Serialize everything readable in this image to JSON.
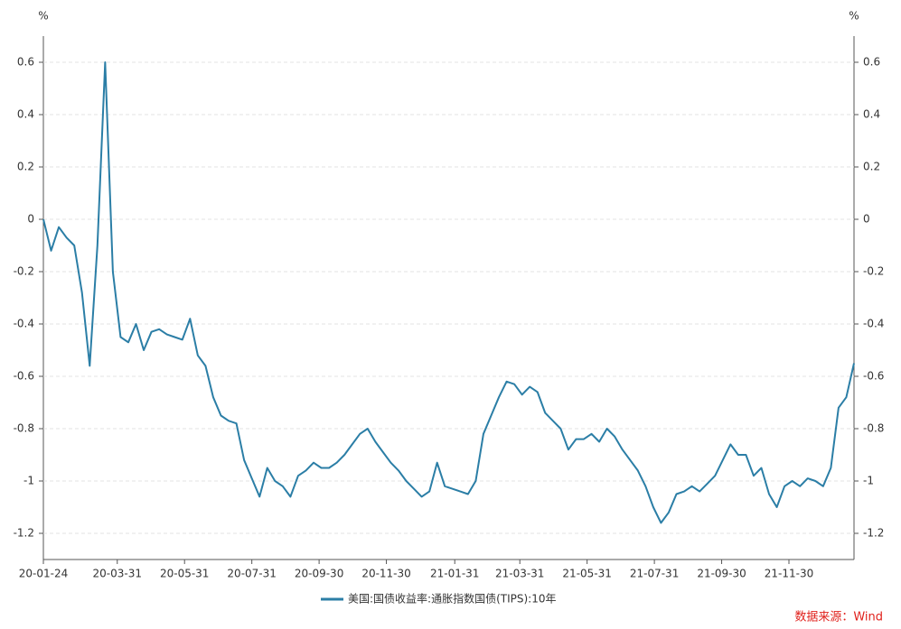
{
  "chart_data": {
    "type": "line",
    "y_label": "%",
    "y2_label": "%",
    "x": [
      "2020-01-24",
      "2020-01-31",
      "2020-02-07",
      "2020-02-14",
      "2020-02-21",
      "2020-02-28",
      "2020-03-06",
      "2020-03-13",
      "2020-03-20",
      "2020-03-27",
      "2020-04-03",
      "2020-04-10",
      "2020-04-17",
      "2020-04-24",
      "2020-05-01",
      "2020-05-08",
      "2020-05-15",
      "2020-05-22",
      "2020-05-29",
      "2020-06-05",
      "2020-06-12",
      "2020-06-19",
      "2020-06-26",
      "2020-07-03",
      "2020-07-10",
      "2020-07-17",
      "2020-07-24",
      "2020-07-31",
      "2020-08-07",
      "2020-08-14",
      "2020-08-21",
      "2020-08-28",
      "2020-09-04",
      "2020-09-11",
      "2020-09-18",
      "2020-09-25",
      "2020-10-02",
      "2020-10-09",
      "2020-10-16",
      "2020-10-23",
      "2020-10-30",
      "2020-11-06",
      "2020-11-13",
      "2020-11-20",
      "2020-11-27",
      "2020-12-04",
      "2020-12-11",
      "2020-12-18",
      "2020-12-25",
      "2021-01-01",
      "2021-01-08",
      "2021-01-15",
      "2021-01-22",
      "2021-01-29",
      "2021-02-05",
      "2021-02-12",
      "2021-02-19",
      "2021-02-26",
      "2021-03-05",
      "2021-03-12",
      "2021-03-19",
      "2021-03-26",
      "2021-04-02",
      "2021-04-09",
      "2021-04-16",
      "2021-04-23",
      "2021-04-30",
      "2021-05-07",
      "2021-05-14",
      "2021-05-21",
      "2021-05-28",
      "2021-06-04",
      "2021-06-11",
      "2021-06-18",
      "2021-06-25",
      "2021-07-02",
      "2021-07-09",
      "2021-07-16",
      "2021-07-23",
      "2021-07-30",
      "2021-08-06",
      "2021-08-13",
      "2021-08-20",
      "2021-08-27",
      "2021-09-03",
      "2021-09-10",
      "2021-09-17",
      "2021-09-24",
      "2021-10-01",
      "2021-10-08",
      "2021-10-15",
      "2021-10-22",
      "2021-10-29",
      "2021-11-05",
      "2021-11-12",
      "2021-11-19",
      "2021-11-26",
      "2021-12-03",
      "2021-12-10",
      "2021-12-17",
      "2021-12-24",
      "2021-12-31",
      "2022-01-07",
      "2022-01-14",
      "2022-01-21",
      "2022-01-28"
    ],
    "series": [
      {
        "name": "美国:国债收益率:通胀指数国债(TIPS):10年",
        "color": "#2b7ea6",
        "values": [
          0.0,
          -0.12,
          -0.03,
          -0.07,
          -0.1,
          -0.28,
          -0.56,
          -0.1,
          0.6,
          -0.2,
          -0.45,
          -0.47,
          -0.4,
          -0.5,
          -0.43,
          -0.42,
          -0.44,
          -0.45,
          -0.46,
          -0.38,
          -0.52,
          -0.56,
          -0.68,
          -0.75,
          -0.77,
          -0.78,
          -0.92,
          -0.99,
          -1.06,
          -0.95,
          -1.0,
          -1.02,
          -1.06,
          -0.98,
          -0.96,
          -0.93,
          -0.95,
          -0.95,
          -0.93,
          -0.9,
          -0.86,
          -0.82,
          -0.8,
          -0.85,
          -0.89,
          -0.93,
          -0.96,
          -1.0,
          -1.03,
          -1.06,
          -1.04,
          -0.93,
          -1.02,
          -1.03,
          -1.04,
          -1.05,
          -1.0,
          -0.82,
          -0.75,
          -0.68,
          -0.62,
          -0.63,
          -0.67,
          -0.64,
          -0.66,
          -0.74,
          -0.77,
          -0.8,
          -0.88,
          -0.84,
          -0.84,
          -0.82,
          -0.85,
          -0.8,
          -0.83,
          -0.88,
          -0.92,
          -0.96,
          -1.02,
          -1.1,
          -1.16,
          -1.12,
          -1.05,
          -1.04,
          -1.02,
          -1.04,
          -1.01,
          -0.98,
          -0.92,
          -0.86,
          -0.9,
          -0.9,
          -0.98,
          -0.95,
          -1.05,
          -1.1,
          -1.02,
          -1.0,
          -1.02,
          -0.99,
          -1.0,
          -1.02,
          -0.95,
          -0.72,
          -0.68,
          -0.55
        ]
      }
    ],
    "xlim": [
      "2020-01-24",
      "2022-01-28"
    ],
    "xticks": [
      {
        "value": "2020-01-24",
        "label": "20-01-24"
      },
      {
        "value": "2020-03-31",
        "label": "20-03-31"
      },
      {
        "value": "2020-05-31",
        "label": "20-05-31"
      },
      {
        "value": "2020-07-31",
        "label": "20-07-31"
      },
      {
        "value": "2020-09-30",
        "label": "20-09-30"
      },
      {
        "value": "2020-11-30",
        "label": "20-11-30"
      },
      {
        "value": "2021-01-31",
        "label": "21-01-31"
      },
      {
        "value": "2021-03-31",
        "label": "21-03-31"
      },
      {
        "value": "2021-05-31",
        "label": "21-05-31"
      },
      {
        "value": "2021-07-31",
        "label": "21-07-31"
      },
      {
        "value": "2021-09-30",
        "label": "21-09-30"
      },
      {
        "value": "2021-11-30",
        "label": "21-11-30"
      }
    ],
    "ylim": [
      -1.3,
      0.7
    ],
    "yticks": [
      -1.2,
      -1,
      -0.8,
      -0.6,
      -0.4,
      -0.2,
      0,
      0.2,
      0.4,
      0.6
    ],
    "y2lim": [
      -1.3,
      0.7
    ],
    "y2ticks": [
      -1.2,
      -1,
      -0.8,
      -0.6,
      -0.4,
      -0.2,
      0,
      0.2,
      0.4,
      0.6
    ],
    "grid": true,
    "source": "数据来源：Wind"
  }
}
